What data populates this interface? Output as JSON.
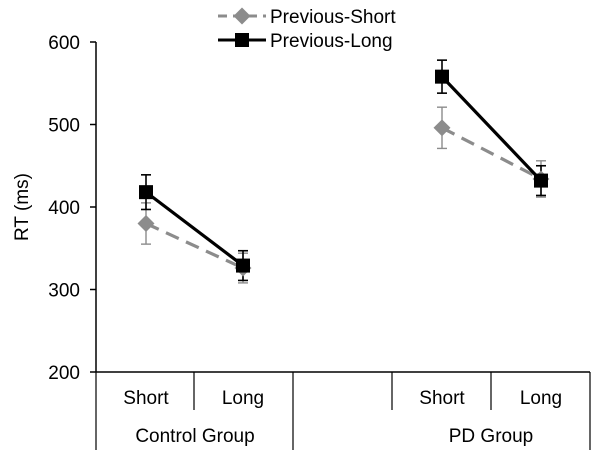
{
  "chart_data": {
    "type": "line",
    "title": "",
    "xlabel": "",
    "ylabel": "RT (ms)",
    "ylim": [
      200,
      600
    ],
    "yticks": [
      200,
      300,
      400,
      500,
      600
    ],
    "groups": [
      {
        "label": "Control Group",
        "categories": [
          "Short",
          "Long"
        ]
      },
      {
        "label": "PD Group",
        "categories": [
          "Short",
          "Long"
        ]
      }
    ],
    "series": [
      {
        "name": "Previous-Short",
        "color": "#8c8c8c",
        "line_style": "dashed",
        "marker": "diamond",
        "values": [
          [
            380,
            326
          ],
          [
            496,
            434
          ]
        ],
        "errors": [
          [
            25,
            18
          ],
          [
            25,
            22
          ]
        ]
      },
      {
        "name": "Previous-Long",
        "color": "#000000",
        "line_style": "solid",
        "marker": "square",
        "values": [
          [
            418,
            329
          ],
          [
            558,
            432
          ]
        ],
        "errors": [
          [
            21,
            18
          ],
          [
            20,
            18
          ]
        ]
      }
    ],
    "legend_position": "top"
  }
}
